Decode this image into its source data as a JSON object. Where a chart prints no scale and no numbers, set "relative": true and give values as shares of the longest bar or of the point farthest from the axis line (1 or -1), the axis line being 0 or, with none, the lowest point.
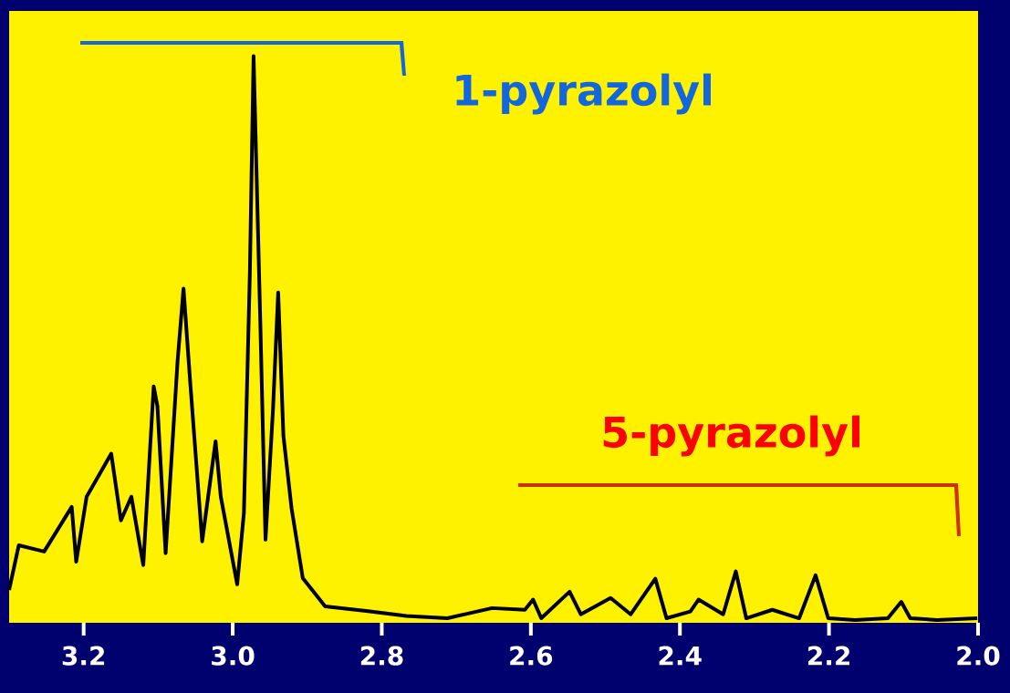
{
  "chart_data": {
    "type": "line",
    "relative": true,
    "marker": "none",
    "line_style": "solid",
    "x": [
      3.3,
      3.287,
      3.253,
      3.216,
      3.21,
      3.196,
      3.163,
      3.15,
      3.136,
      3.12,
      3.106,
      3.101,
      3.09,
      3.074,
      3.066,
      3.057,
      3.041,
      3.023,
      3.016,
      2.994,
      2.985,
      2.977,
      2.972,
      2.963,
      2.956,
      2.946,
      2.939,
      2.932,
      2.921,
      2.906,
      2.876,
      2.821,
      2.767,
      2.712,
      2.652,
      2.608,
      2.597,
      2.586,
      2.548,
      2.533,
      2.493,
      2.466,
      2.433,
      2.418,
      2.386,
      2.375,
      2.342,
      2.325,
      2.311,
      2.276,
      2.24,
      2.218,
      2.201,
      2.165,
      2.121,
      2.103,
      2.091,
      2.055,
      2.001
    ],
    "series": [
      {
        "color": "#000000",
        "values": [
          0.056,
          0.135,
          0.124,
          0.203,
          0.106,
          0.221,
          0.297,
          0.179,
          0.221,
          0.1,
          0.416,
          0.381,
          0.121,
          0.46,
          0.589,
          0.423,
          0.142,
          0.319,
          0.221,
          0.066,
          0.192,
          0.616,
          1.0,
          0.531,
          0.145,
          0.374,
          0.582,
          0.329,
          0.2,
          0.077,
          0.027,
          0.019,
          0.01,
          0.006,
          0.024,
          0.021,
          0.039,
          0.006,
          0.053,
          0.013,
          0.042,
          0.013,
          0.076,
          0.006,
          0.018,
          0.039,
          0.013,
          0.089,
          0.006,
          0.021,
          0.006,
          0.082,
          0.006,
          0.003,
          0.006,
          0.035,
          0.006,
          0.003,
          0.006
        ]
      }
    ],
    "xlim": [
      3.3,
      2.0
    ],
    "xticks": [
      {
        "value": 3.2,
        "label": "3.2"
      },
      {
        "value": 3.0,
        "label": "3.0"
      },
      {
        "value": 2.8,
        "label": "2.8"
      },
      {
        "value": 2.6,
        "label": "2.6"
      },
      {
        "value": 2.4,
        "label": "2.4"
      },
      {
        "value": 2.2,
        "label": "2.2"
      },
      {
        "value": 2.0,
        "label": "2.0"
      }
    ],
    "annotations": [
      "1-pyrazolyl",
      "5-pyrazolyl"
    ]
  }
}
